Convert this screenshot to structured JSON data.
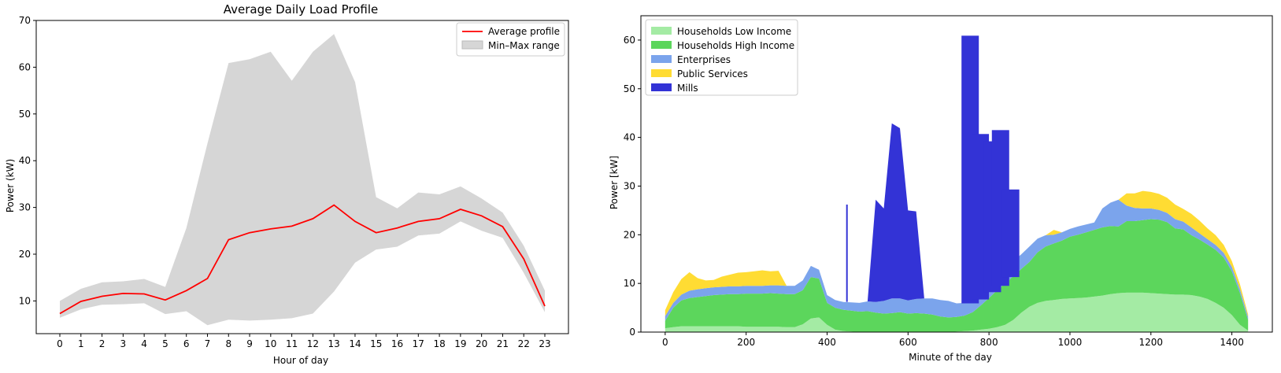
{
  "chart_data": [
    {
      "type": "line",
      "title": "Average Daily Load Profile",
      "xlabel": "Hour of day",
      "ylabel": "Power (kW)",
      "ylim": [
        3,
        70
      ],
      "y_ticks": [
        10,
        20,
        30,
        40,
        50,
        60,
        70
      ],
      "x": [
        0,
        1,
        2,
        3,
        4,
        5,
        6,
        7,
        8,
        9,
        10,
        11,
        12,
        13,
        14,
        15,
        16,
        17,
        18,
        19,
        20,
        21,
        22,
        23
      ],
      "x_tick_labels": [
        "0",
        "1",
        "2",
        "3",
        "4",
        "5",
        "6",
        "7",
        "8",
        "9",
        "10",
        "11",
        "12",
        "13",
        "14",
        "15",
        "16",
        "17",
        "18",
        "19",
        "20",
        "21",
        "22",
        "23"
      ],
      "series": [
        {
          "name": "Average profile",
          "color": "#ff0000",
          "values": [
            7.3,
            9.9,
            11.0,
            11.6,
            11.5,
            10.2,
            12.2,
            14.8,
            23.1,
            24.6,
            25.4,
            26.0,
            27.6,
            30.5,
            27.0,
            24.6,
            25.6,
            27.0,
            27.6,
            29.6,
            28.2,
            25.9,
            19.0,
            8.9
          ]
        },
        {
          "name": "Min–Max range",
          "color": "#d6d6d6",
          "min": [
            6.4,
            8.2,
            9.2,
            9.3,
            9.5,
            7.2,
            7.8,
            4.8,
            6.0,
            5.8,
            6.0,
            6.3,
            7.3,
            12.0,
            18.2,
            21.0,
            21.6,
            24.0,
            24.4,
            27.0,
            25.0,
            23.5,
            16.0,
            7.6
          ],
          "max": [
            10.0,
            12.6,
            14.0,
            14.2,
            14.7,
            13.0,
            25.6,
            43.7,
            60.9,
            61.7,
            63.3,
            57.1,
            63.3,
            67.1,
            56.8,
            32.2,
            29.8,
            33.2,
            32.8,
            34.5,
            31.9,
            28.9,
            21.8,
            12.2
          ]
        }
      ],
      "legend": {
        "position": "top-right",
        "entries": [
          "Average profile",
          "Min–Max range"
        ]
      },
      "grid": false
    },
    {
      "type": "area",
      "title": "",
      "xlabel": "Minute of the day",
      "ylabel": "Power [kW]",
      "xlim": [
        -60,
        1500
      ],
      "ylim": [
        0,
        65
      ],
      "x_ticks": [
        0,
        200,
        400,
        600,
        800,
        1000,
        1200,
        1400
      ],
      "y_ticks": [
        0,
        10,
        20,
        30,
        40,
        50,
        60
      ],
      "stacked": true,
      "x": [
        0,
        20,
        40,
        60,
        80,
        100,
        120,
        140,
        160,
        180,
        200,
        220,
        240,
        260,
        280,
        300,
        320,
        340,
        360,
        380,
        400,
        420,
        440,
        460,
        480,
        500,
        520,
        540,
        560,
        580,
        600,
        620,
        640,
        660,
        680,
        700,
        720,
        740,
        760,
        780,
        800,
        820,
        840,
        860,
        880,
        900,
        920,
        940,
        960,
        980,
        1000,
        1020,
        1040,
        1060,
        1080,
        1100,
        1120,
        1140,
        1160,
        1180,
        1200,
        1220,
        1240,
        1260,
        1280,
        1300,
        1320,
        1340,
        1360,
        1380,
        1400,
        1420,
        1440
      ],
      "series": [
        {
          "name": "Households Low Income",
          "color": "#a4eba4",
          "values": [
            0.8,
            1.0,
            1.2,
            1.2,
            1.2,
            1.2,
            1.2,
            1.2,
            1.2,
            1.2,
            1.1,
            1.1,
            1.1,
            1.1,
            1.1,
            1.0,
            1.0,
            1.6,
            2.8,
            3.0,
            1.5,
            0.5,
            0.2,
            0.1,
            0,
            0,
            0,
            0,
            0,
            0,
            0,
            0,
            0,
            0,
            0,
            0,
            0.1,
            0.2,
            0.3,
            0.5,
            0.7,
            1.0,
            1.5,
            2.5,
            4.0,
            5.2,
            6.0,
            6.4,
            6.6,
            6.8,
            6.9,
            7.0,
            7.1,
            7.3,
            7.5,
            7.8,
            8.0,
            8.1,
            8.1,
            8.1,
            8.0,
            7.9,
            7.8,
            7.7,
            7.7,
            7.6,
            7.3,
            6.8,
            6.0,
            5.0,
            3.5,
            1.5,
            0.3
          ]
        },
        {
          "name": "Households High Income",
          "color": "#5cd65c",
          "values": [
            1.5,
            4.0,
            5.3,
            5.8,
            6.0,
            6.2,
            6.4,
            6.5,
            6.6,
            6.6,
            6.8,
            6.8,
            6.8,
            6.9,
            6.8,
            6.8,
            6.8,
            7.0,
            8.5,
            8.0,
            4.5,
            4.5,
            4.4,
            4.3,
            4.2,
            4.3,
            4.0,
            3.8,
            3.9,
            4.1,
            3.8,
            3.9,
            3.8,
            3.6,
            3.2,
            3.0,
            3.0,
            3.2,
            3.8,
            5.0,
            6.3,
            7.6,
            8.5,
            9.0,
            9.0,
            9.2,
            10.4,
            11.2,
            11.6,
            12.0,
            12.7,
            13.0,
            13.4,
            13.7,
            14.0,
            14.0,
            13.7,
            14.7,
            14.7,
            14.9,
            15.2,
            15.2,
            14.8,
            13.6,
            13.4,
            12.3,
            11.7,
            11.2,
            10.9,
            10.3,
            9.0,
            6.5,
            2.2
          ]
        },
        {
          "name": "Enterprises",
          "color": "#7ba4ec",
          "values": [
            1.0,
            1.0,
            1.2,
            1.5,
            1.6,
            1.6,
            1.6,
            1.6,
            1.6,
            1.6,
            1.6,
            1.6,
            1.6,
            1.6,
            1.7,
            1.7,
            1.7,
            2.0,
            2.3,
            1.8,
            1.6,
            1.6,
            1.6,
            1.7,
            1.8,
            2.0,
            2.2,
            2.6,
            3.0,
            2.8,
            2.7,
            2.9,
            3.1,
            3.3,
            3.4,
            3.4,
            2.8,
            2.6,
            2.6,
            2.7,
            2.5,
            2.7,
            3.0,
            3.1,
            3.0,
            3.2,
            2.8,
            2.3,
            1.8,
            1.7,
            1.6,
            1.7,
            1.6,
            1.5,
            3.9,
            4.8,
            5.5,
            3.2,
            2.7,
            2.4,
            2.2,
            2.0,
            1.9,
            1.9,
            1.6,
            1.6,
            1.3,
            1.1,
            1.0,
            1.0,
            0.9,
            0.8,
            0.6
          ]
        },
        {
          "name": "Public Services",
          "color": "#ffdc33",
          "values": [
            1.2,
            2.2,
            3.2,
            3.8,
            2.3,
            1.6,
            1.5,
            2.1,
            2.4,
            2.8,
            2.8,
            3.0,
            3.2,
            2.9,
            3.0,
            0,
            0,
            0,
            0,
            0,
            0,
            0,
            0,
            0,
            0,
            0,
            0,
            0,
            0,
            0,
            0,
            0,
            0,
            0,
            0,
            0,
            0,
            0,
            0,
            0,
            0,
            0,
            0,
            0,
            0,
            0,
            0,
            0,
            1.0,
            0,
            0,
            0,
            0,
            0,
            0,
            0,
            0,
            2.5,
            3.0,
            3.6,
            3.4,
            3.3,
            3.1,
            3.0,
            2.6,
            2.8,
            2.6,
            2.2,
            2.0,
            1.6,
            1.2,
            1.0,
            0.5
          ]
        },
        {
          "name": "Mills",
          "color": "#3333d6",
          "values": [
            0,
            0,
            0,
            0,
            0,
            0,
            0,
            0,
            0,
            0,
            0,
            0,
            0,
            0,
            0,
            0,
            0,
            0,
            0,
            0,
            0,
            0,
            0,
            0,
            0,
            0,
            21.0,
            19.0,
            36.0,
            35.0,
            18.5,
            18.0,
            0,
            0,
            0,
            0,
            0,
            0,
            0,
            0,
            0,
            0,
            0,
            0,
            0,
            0,
            0,
            0,
            0,
            0,
            0,
            0,
            0,
            0,
            0,
            0,
            0,
            0,
            0,
            0,
            0,
            0,
            0,
            0,
            0,
            0,
            0,
            0,
            0,
            0,
            0,
            0,
            0
          ]
        }
      ],
      "spikes": [
        {
          "x": 450,
          "height": 20.0
        },
        {
          "x": 735,
          "height": 55.0
        },
        {
          "x": 760,
          "height": 34.0
        },
        {
          "x": 790,
          "height": 31.0
        },
        {
          "x": 810,
          "height": 32.0
        },
        {
          "x": 835,
          "height": 18.0
        }
      ],
      "legend": {
        "position": "top-left",
        "entries": [
          "Households Low Income",
          "Households High Income",
          "Enterprises",
          "Public Services",
          "Mills"
        ]
      },
      "grid": false
    }
  ]
}
